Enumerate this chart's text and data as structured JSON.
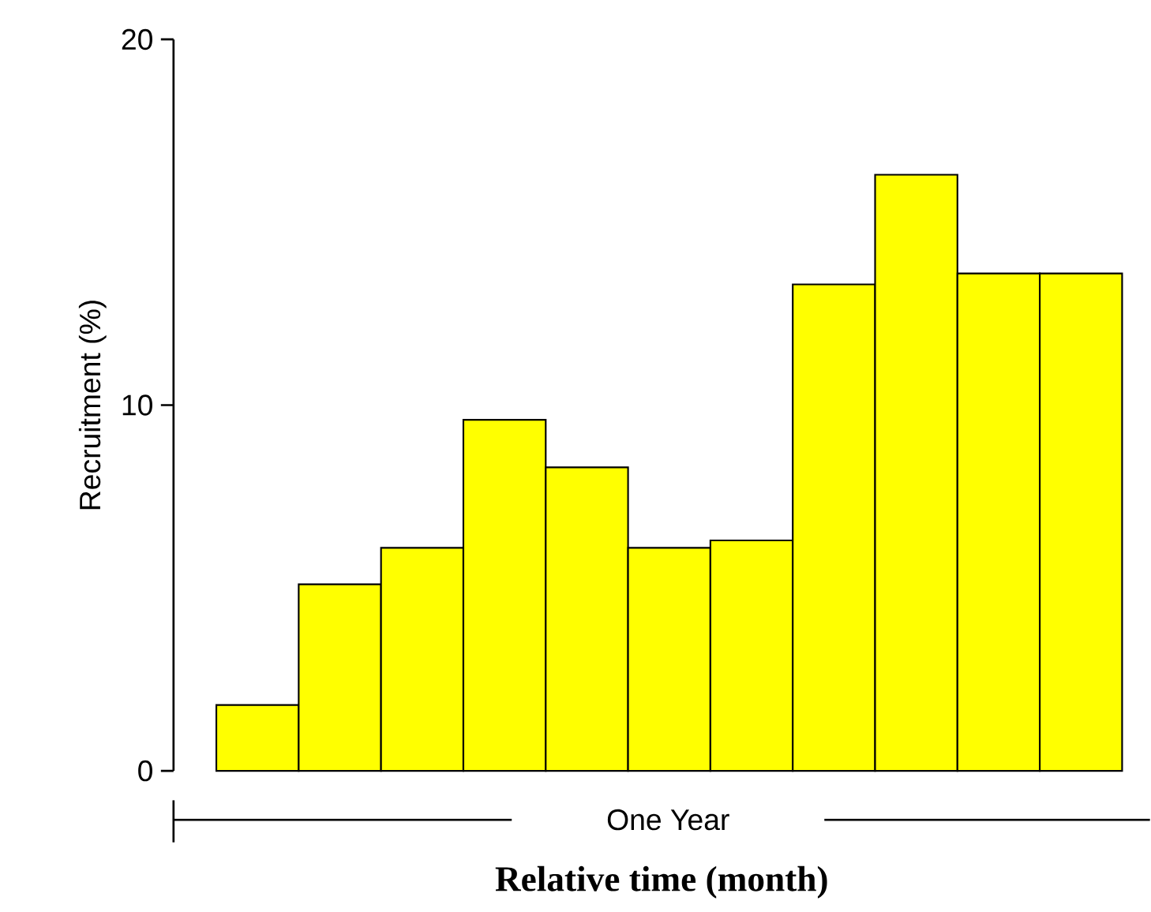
{
  "chart_data": {
    "type": "bar",
    "xlabel": "Relative time (month)",
    "ylabel": "Recruitment (%)",
    "categories": [
      null,
      null,
      null,
      null,
      null,
      null,
      null,
      null,
      null,
      null,
      null
    ],
    "values": [
      1.8,
      5.1,
      6.1,
      9.6,
      8.3,
      6.1,
      6.3,
      13.3,
      16.3,
      13.6,
      13.6
    ],
    "color": "#ffff00",
    "ylim": [
      0,
      20
    ],
    "yticks": [
      0,
      10,
      20
    ],
    "grid": false,
    "tick_labels": "y",
    "annotations": [
      "One Year"
    ]
  }
}
